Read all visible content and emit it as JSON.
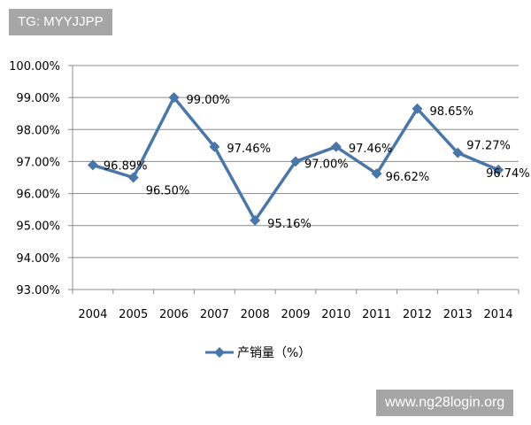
{
  "chart_data": {
    "type": "line",
    "categories": [
      "2004",
      "2005",
      "2006",
      "2007",
      "2008",
      "2009",
      "2010",
      "2011",
      "2012",
      "2013",
      "2014"
    ],
    "series": [
      {
        "name": "产销量（%）",
        "values": [
          96.89,
          96.5,
          99.0,
          97.46,
          95.16,
          97.0,
          97.46,
          96.62,
          98.65,
          97.27,
          96.74
        ],
        "data_labels": [
          "96.89%",
          "96.50%",
          "99.00%",
          "97.46%",
          "95.16%",
          "97.00%",
          "97.46%",
          "96.62%",
          "98.65%",
          "97.27%",
          "96.74%"
        ],
        "color": "#4a76a8",
        "marker": "diamond"
      }
    ],
    "ylim": [
      93,
      100
    ],
    "yticks": [
      "93.00%",
      "94.00%",
      "95.00%",
      "96.00%",
      "97.00%",
      "98.00%",
      "99.00%",
      "100.00%"
    ],
    "grid": true,
    "legend": "bottom",
    "title": "",
    "xlabel": "",
    "ylabel": ""
  },
  "watermarks": {
    "top_left": "TG: MYYJJPP",
    "bottom_right": "www.ng28login.org"
  }
}
